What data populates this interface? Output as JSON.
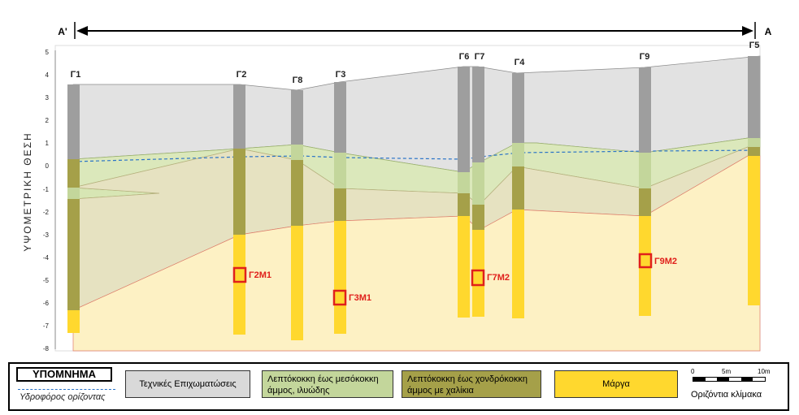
{
  "section": {
    "end_left": "A'",
    "end_right": "A",
    "y_axis_label": "ΥΨΟΜΕΤΡΙΚΗ ΘΕΣΗ",
    "y_ticks": [
      "5",
      "4",
      "3",
      "2",
      "1",
      "0",
      "-1",
      "-2",
      "-3",
      "-4",
      "-5",
      "-6",
      "-7",
      "-8"
    ],
    "boreholes": [
      "Γ1",
      "Γ2",
      "Γ8",
      "Γ3",
      "Γ6",
      "Γ7",
      "Γ4",
      "Γ9",
      "Γ5"
    ],
    "samples": [
      "Γ2Μ1",
      "Γ3Μ1",
      "Γ7Μ2",
      "Γ9Μ2"
    ]
  },
  "legend": {
    "title": "ΥΠΟΜΝΗΜΑ",
    "water_label": "Υδροφόρος ορίζοντας",
    "fill_label": "Τεχνικές Επιχωματώσεις",
    "fine_sand_label": "Λεπτόκοκκη έως μεσόκοκκη άμμος, ιλυώδης",
    "coarse_sand_label": "Λεπτόκοκκη έως χονδρόκοκκη άμμος με χαλίκια",
    "marl_label": "Μάργα",
    "scale_ticks": [
      "0",
      "5m",
      "10m"
    ],
    "scale_label": "Οριζόντια κλίμακα"
  },
  "colors": {
    "fill": "#d9d9d9",
    "fine_sand": "#c3d69b",
    "coarse_sand": "#a5a049",
    "marl": "#ffd82e",
    "water": "#2b74c7",
    "sample": "#e0201b"
  }
}
